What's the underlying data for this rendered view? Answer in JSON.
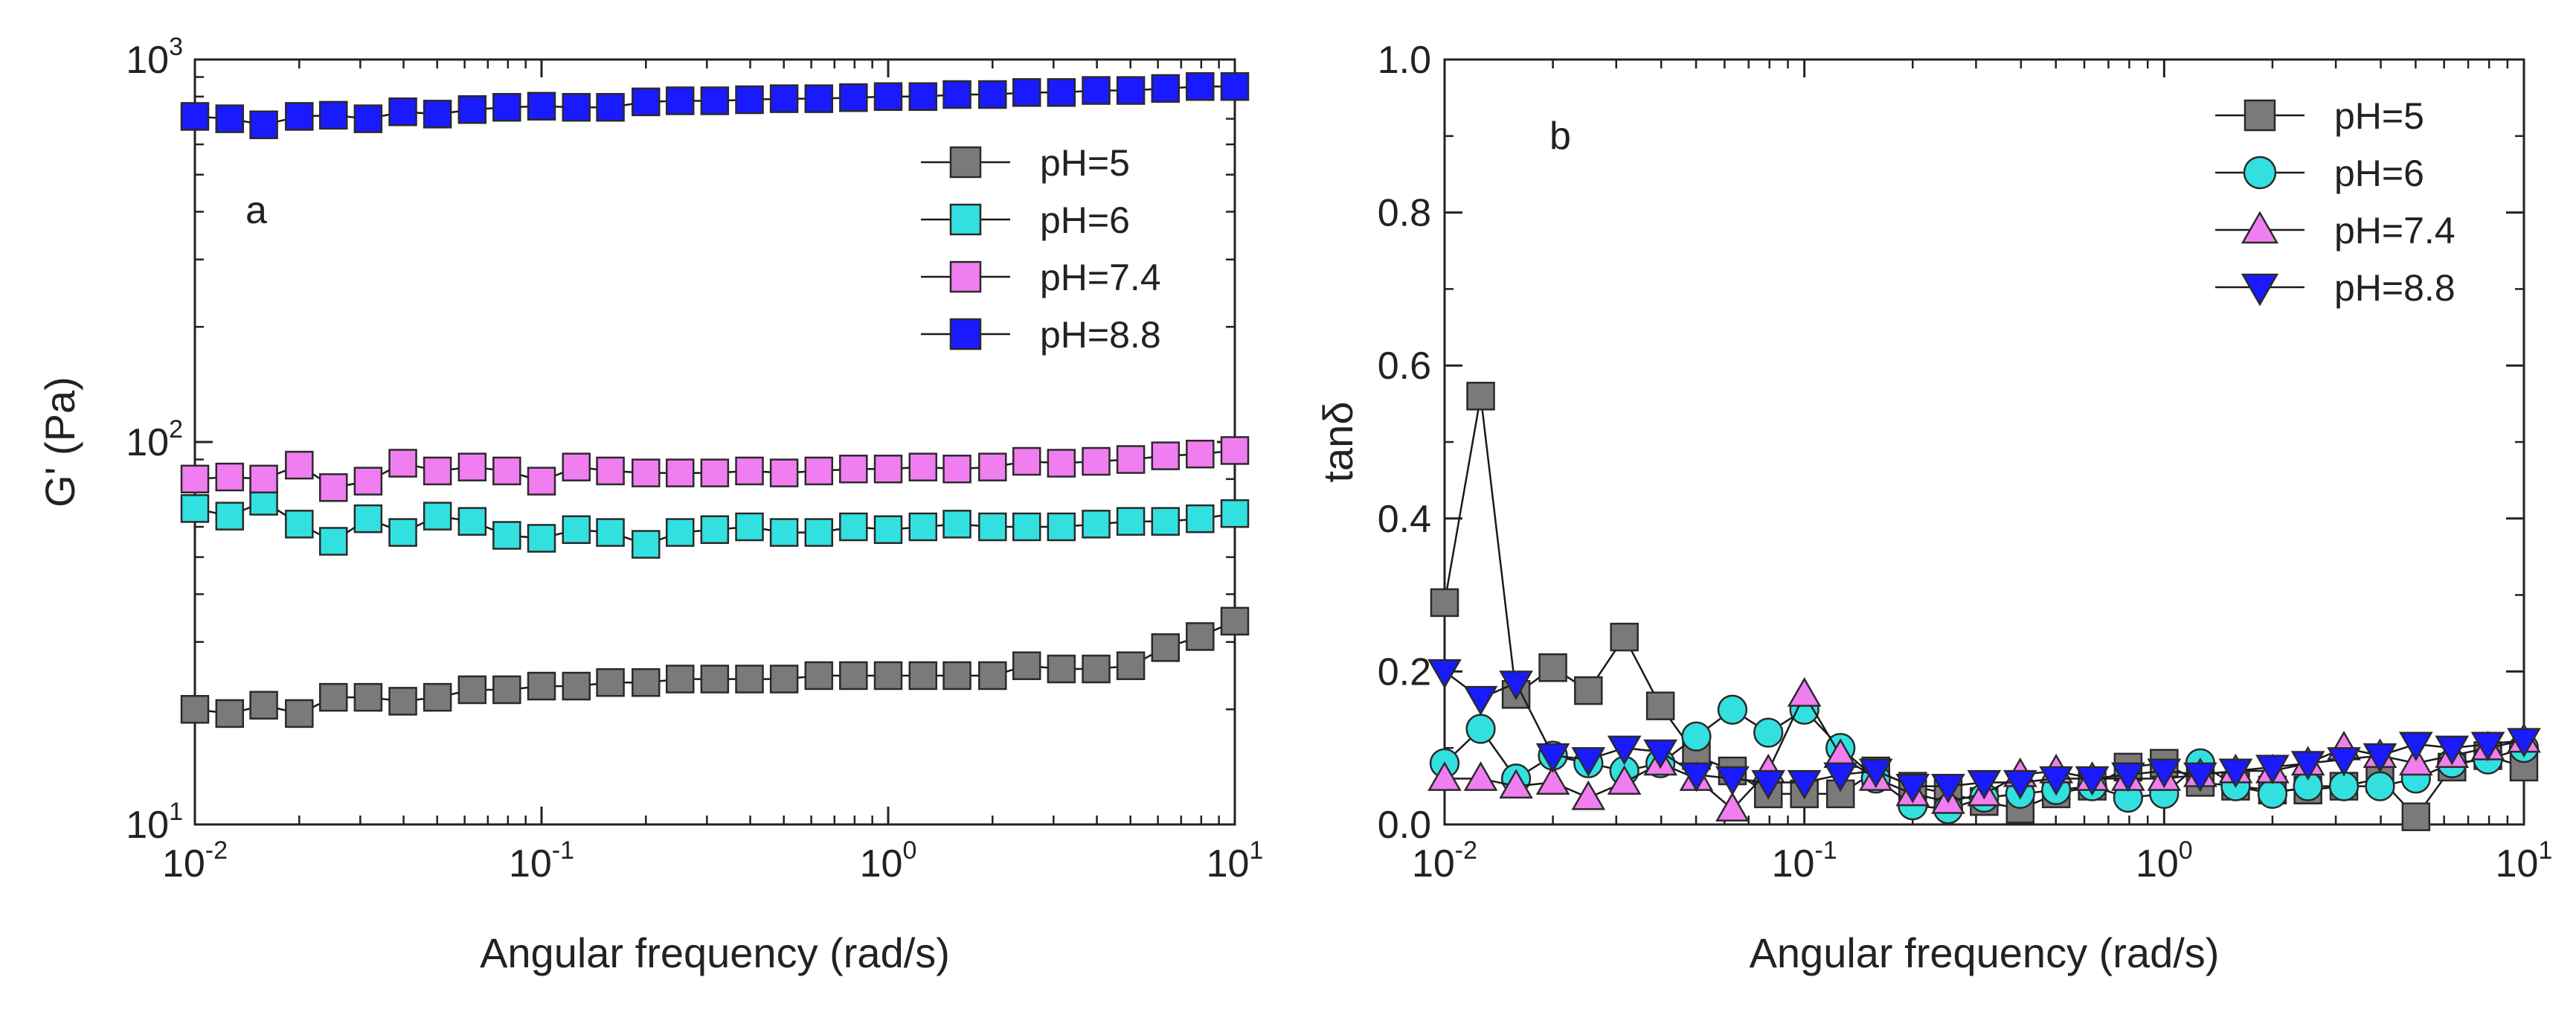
{
  "chart_data": [
    {
      "type": "scatter",
      "panel_label": "a",
      "xlabel": "Angular frequency (rad/s)",
      "ylabel": "G' (Pa)",
      "x_scale": "log",
      "y_scale": "log",
      "xlim": [
        0.01,
        10
      ],
      "ylim": [
        10,
        1000
      ],
      "x_ticks": [
        {
          "base": "10",
          "exp": "-2",
          "v": 0.01
        },
        {
          "base": "10",
          "exp": "-1",
          "v": 0.1
        },
        {
          "base": "10",
          "exp": "0",
          "v": 1
        },
        {
          "base": "10",
          "exp": "1",
          "v": 10
        }
      ],
      "y_ticks": [
        {
          "base": "10",
          "exp": "1",
          "v": 10
        },
        {
          "base": "10",
          "exp": "2",
          "v": 100
        },
        {
          "base": "10",
          "exp": "3",
          "v": 1000
        }
      ],
      "grid": false,
      "legend_position": "top-right",
      "x": [
        0.01,
        0.0126,
        0.0158,
        0.02,
        0.0251,
        0.0316,
        0.0398,
        0.0501,
        0.0631,
        0.0794,
        0.1,
        0.126,
        0.158,
        0.2,
        0.251,
        0.316,
        0.398,
        0.501,
        0.631,
        0.794,
        1.0,
        1.26,
        1.58,
        2.0,
        2.51,
        3.16,
        3.98,
        5.01,
        6.31,
        7.94,
        10.0
      ],
      "series": [
        {
          "name": "pH=5",
          "marker": "square",
          "color": "#7a7a7a",
          "values": [
            20,
            19.5,
            20.5,
            19.5,
            21.5,
            21.5,
            21,
            21.5,
            22.5,
            22.5,
            23,
            23,
            23.5,
            23.5,
            24,
            24,
            24,
            24,
            24.5,
            24.5,
            24.5,
            24.5,
            24.5,
            24.5,
            26,
            25.5,
            25.5,
            26,
            29,
            31,
            34
          ]
        },
        {
          "name": "pH=6",
          "marker": "square",
          "color": "#33e0e0",
          "values": [
            67,
            64,
            70,
            61,
            55,
            63,
            58,
            64,
            62,
            57,
            56,
            59,
            58,
            54,
            58,
            59,
            60,
            58,
            58,
            60,
            59,
            60,
            61,
            60,
            60,
            60,
            61,
            62,
            62,
            63,
            65
          ]
        },
        {
          "name": "pH=7.4",
          "marker": "square",
          "color": "#f07ef0",
          "values": [
            80,
            81,
            80,
            87,
            76,
            79,
            88,
            84,
            86,
            84,
            79,
            86,
            84,
            83,
            83,
            83,
            84,
            83,
            84,
            85,
            85,
            86,
            85,
            86,
            89,
            88,
            89,
            90,
            92,
            93,
            95
          ]
        },
        {
          "name": "pH=8.8",
          "marker": "square",
          "color": "#1a1aff",
          "values": [
            710,
            700,
            675,
            710,
            715,
            700,
            730,
            720,
            740,
            750,
            755,
            750,
            750,
            775,
            780,
            780,
            785,
            790,
            790,
            795,
            800,
            800,
            810,
            810,
            820,
            820,
            830,
            830,
            840,
            850,
            850
          ]
        }
      ]
    },
    {
      "type": "line",
      "panel_label": "b",
      "xlabel": "Angular frequency (rad/s)",
      "ylabel": "tanδ",
      "x_scale": "log",
      "y_scale": "linear",
      "xlim": [
        0.01,
        10
      ],
      "ylim": [
        0,
        1.0
      ],
      "x_ticks": [
        {
          "base": "10",
          "exp": "-2",
          "v": 0.01
        },
        {
          "base": "10",
          "exp": "-1",
          "v": 0.1
        },
        {
          "base": "10",
          "exp": "0",
          "v": 1
        },
        {
          "base": "10",
          "exp": "1",
          "v": 10
        }
      ],
      "y_ticks": [
        {
          "label": "0.0",
          "v": 0
        },
        {
          "label": "0.2",
          "v": 0.2
        },
        {
          "label": "0.4",
          "v": 0.4
        },
        {
          "label": "0.6",
          "v": 0.6
        },
        {
          "label": "0.8",
          "v": 0.8
        },
        {
          "label": "1.0",
          "v": 1.0
        }
      ],
      "grid": false,
      "legend_position": "top-right",
      "x": [
        0.01,
        0.0126,
        0.0158,
        0.02,
        0.0251,
        0.0316,
        0.0398,
        0.0501,
        0.0631,
        0.0794,
        0.1,
        0.126,
        0.158,
        0.2,
        0.251,
        0.316,
        0.398,
        0.501,
        0.631,
        0.794,
        1.0,
        1.26,
        1.58,
        2.0,
        2.51,
        3.16,
        3.98,
        5.01,
        6.31,
        7.94,
        10.0
      ],
      "series": [
        {
          "name": "pH=5",
          "marker": "square",
          "color": "#7a7a7a",
          "values": [
            0.29,
            0.56,
            0.17,
            0.205,
            0.175,
            0.245,
            0.155,
            0.09,
            0.07,
            0.04,
            0.04,
            0.04,
            0.07,
            0.05,
            0.04,
            0.03,
            0.02,
            0.04,
            0.05,
            0.075,
            0.08,
            0.055,
            0.05,
            0.045,
            0.045,
            0.05,
            0.06,
            0.01,
            0.075,
            0.09,
            0.075
          ]
        },
        {
          "name": "pH=6",
          "marker": "circle",
          "color": "#33e0e0",
          "values": [
            0.08,
            0.125,
            0.06,
            0.09,
            0.08,
            0.07,
            0.08,
            0.115,
            0.15,
            0.12,
            0.15,
            0.1,
            0.06,
            0.025,
            0.02,
            0.035,
            0.04,
            0.045,
            0.05,
            0.035,
            0.04,
            0.08,
            0.05,
            0.04,
            0.05,
            0.05,
            0.05,
            0.06,
            0.08,
            0.085,
            0.1
          ]
        },
        {
          "name": "pH=7.4",
          "marker": "triangle-up",
          "color": "#f07ef0",
          "values": [
            0.06,
            0.06,
            0.05,
            0.055,
            0.035,
            0.055,
            0.08,
            0.06,
            0.02,
            0.07,
            0.17,
            0.09,
            0.06,
            0.04,
            0.03,
            0.04,
            0.065,
            0.07,
            0.06,
            0.06,
            0.06,
            0.065,
            0.07,
            0.07,
            0.08,
            0.1,
            0.09,
            0.08,
            0.09,
            0.1,
            0.11
          ]
        },
        {
          "name": "pH=8.8",
          "marker": "triangle-down",
          "color": "#1a1aff",
          "values": [
            0.2,
            0.165,
            0.185,
            0.09,
            0.085,
            0.1,
            0.095,
            0.065,
            0.06,
            0.055,
            0.055,
            0.065,
            0.07,
            0.05,
            0.05,
            0.055,
            0.055,
            0.06,
            0.06,
            0.065,
            0.07,
            0.065,
            0.07,
            0.075,
            0.08,
            0.085,
            0.09,
            0.105,
            0.1,
            0.105,
            0.11
          ]
        }
      ]
    }
  ]
}
